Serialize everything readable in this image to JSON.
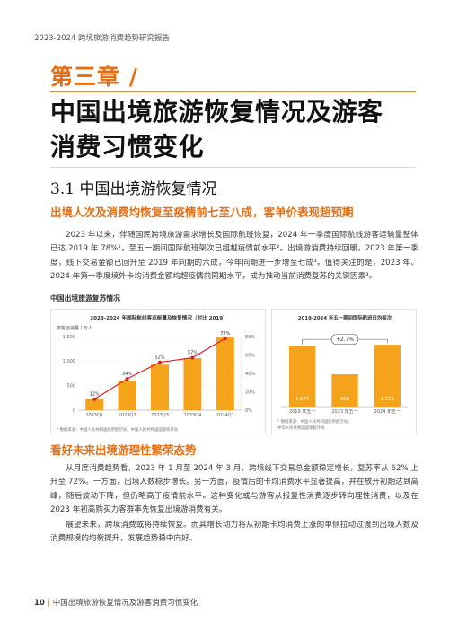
{
  "header": {
    "title": "2023-2024 跨境旅游消费趋势研究报告"
  },
  "chapter": {
    "label": "第三章 /",
    "title_line1": "中国出境旅游恢复情况及游客",
    "title_line2": "消费习惯变化"
  },
  "section": {
    "heading": "3.1 中国出境游恢复情况",
    "sub1": "出境人次及消费均恢复至疫情前七至八成，客单价表现超预期",
    "para1": "2023 年以来，伴随国民跨境旅游需求增长及国际航班恢复，2024 年一季度国际航线游客运输量整体已达 2019 年 78%¹，至五一期间国际航班架次已超越疫情前水平²。出境游消费持续回暖，2023 年第一季度，线下交易金额已回升至 2019 年同期的六成，今年同期进一步增至七成³。值得关注的是，2023 年、2024 年第一季度境外卡均消费金额均超疫情前同期水平，成为推动当前消费复苏的关键因素³。",
    "figure_caption": "中国出境旅游复苏情况",
    "sub2": "看好未来出境游理性繁荣态势",
    "para2": "从月度消费趋势看，2023 年 1 月至 2024 年 3 月，跨境线下交易总金额稳定增长，复苏率从 62% 上升至 72%。一方面，出境人数稳步增长。另一方面，疫情后的卡均消费水平显著提高，并在放开初期达到高峰，随后波动下降，但仍略高于疫情前水平。这种变化或与游客从报复性消费逐步转向理性消费，以及在 2023 年初高购买力客群率先恢复出境游消费有关。",
    "para3": "展望未来，跨境消费或将持续恢复。而其增长动力将从初期卡均消费上涨的单侧拉动过渡到出境人数及消费规模的均衡提升，发展趋势稳中向好。"
  },
  "chart_left_title": "2023-2024 年国际航线客运能量及恢复情况（对比 2019）",
  "chart_right_title": "2019-2024 年五一期间国际航班日均架次",
  "chart_data": [
    {
      "type": "bar",
      "title": "2023-2024 年国际航线客运能量及恢复情况（对比 2019）",
      "ylabel": "旅客运输量 / 万人",
      "categories": [
        "2023Q1",
        "2023Q2",
        "2023Q3",
        "2023Q4",
        "2024Q1"
      ],
      "values": [
        230,
        600,
        930,
        1060,
        1480
      ],
      "ylim": [
        0,
        1500
      ],
      "yticks": [
        "0",
        "500",
        "1,000",
        "1,500"
      ],
      "line_series": {
        "values": [
          12,
          34,
          52,
          57,
          78
        ],
        "labels": [
          "12%",
          "34%",
          "52%",
          "57%",
          "78%"
        ],
        "ylim": [
          0,
          80
        ],
        "yticks": [
          "0%",
          "20%",
          "40%",
          "60%",
          "80%"
        ]
      },
      "bar_color": "#f5a31a",
      "line_color": "#e02020",
      "source": "* 数据来源：中国人民共和国民用航空局、中国人民共和国国家统计局"
    },
    {
      "type": "bar",
      "title": "2019-2024 年五一期间国际航班日均架次",
      "categories": [
        "2019 年五一",
        "2023 年五一",
        "2024 年五一"
      ],
      "values": [
        1677,
        900,
        1722
      ],
      "value_labels": [
        "1,677",
        "900",
        "1,722"
      ],
      "ylim": [
        0,
        2000
      ],
      "annotation": "+2.7%",
      "bar_color": "#f5a31a",
      "source_line1": "* 数据来源：中国人民共和国民用航空局、",
      "source_line2": "中华人民共和国国家统计局"
    }
  ],
  "footer": {
    "page": "10",
    "separator": "|",
    "text": "中国出境旅游恢复情况及游客消费习惯变化"
  }
}
